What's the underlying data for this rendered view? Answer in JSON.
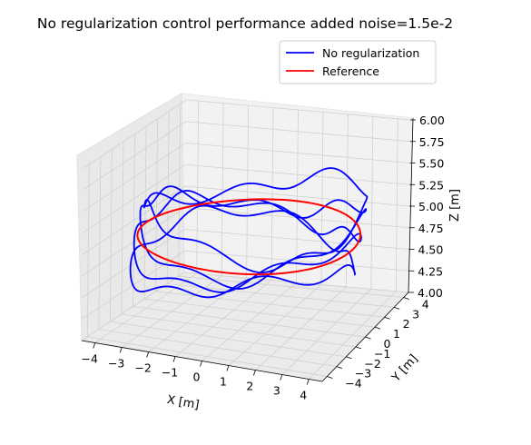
{
  "chart_data": {
    "type": "line",
    "title": "No regularization control performance added noise=1.5e-2",
    "xlabel": "X [m]",
    "ylabel": "Y [m]",
    "zlabel": "Z [m]",
    "xlim": [
      -4.5,
      4.5
    ],
    "ylim": [
      -4.5,
      4.5
    ],
    "zlim": [
      4.0,
      6.0
    ],
    "x_ticks": [
      "−4",
      "−3",
      "−2",
      "−1",
      "0",
      "1",
      "2",
      "3",
      "4"
    ],
    "y_ticks": [
      "−4",
      "−3",
      "−2",
      "−1",
      "0",
      "1",
      "2",
      "3",
      "4"
    ],
    "z_ticks": [
      "4.00",
      "4.25",
      "4.50",
      "4.75",
      "5.00",
      "5.25",
      "5.50",
      "5.75",
      "6.00"
    ],
    "grid": true,
    "legend_position": "top-right",
    "series": [
      {
        "name": "No regularization",
        "color": "#0000ff",
        "description_shape": "approx. circle of radius 4 around z=5 with noisy vertical deviation",
        "points": [
          [
            4.0,
            0.0,
            5.05
          ],
          [
            3.7,
            1.5,
            5.2
          ],
          [
            2.8,
            2.8,
            5.3
          ],
          [
            1.5,
            3.7,
            5.35
          ],
          [
            0.0,
            4.0,
            5.3
          ],
          [
            -1.5,
            3.7,
            5.2
          ],
          [
            -2.8,
            2.8,
            5.05
          ],
          [
            -3.7,
            1.5,
            4.9
          ],
          [
            -4.0,
            0.0,
            4.75
          ],
          [
            -3.7,
            -1.5,
            4.6
          ],
          [
            -2.8,
            -2.8,
            4.5
          ],
          [
            -1.5,
            -3.7,
            4.45
          ],
          [
            0.0,
            -4.0,
            4.5
          ],
          [
            1.5,
            -3.7,
            4.6
          ],
          [
            2.8,
            -2.8,
            4.75
          ],
          [
            3.7,
            -1.5,
            4.9
          ],
          [
            4.0,
            0.0,
            5.0
          ]
        ]
      },
      {
        "name": "Reference",
        "color": "#ff0000",
        "radius": 4.0,
        "z": 5.0
      }
    ]
  }
}
